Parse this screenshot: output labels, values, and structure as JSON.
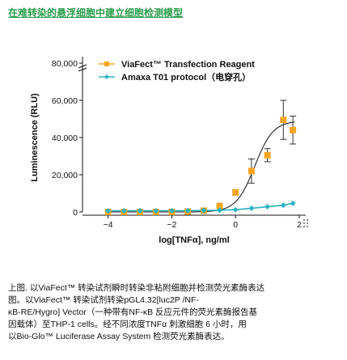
{
  "title": "在难转染的悬浮细胞中建立细胞检测模型",
  "caption": [
    "上图. 以ViaFect™ 转染试剂瞬时转染非粘附细胞并检测荧光素酶表达",
    "图。以ViaFect™ 转染试剂转染pGL4.32[luc2P /NF-",
    "κB-RE/Hygro] Vector（一种带有NF-κB 反应元件的荧光素酶报告基",
    "因载体）至THP-1 cells。经不同浓度TNFα 刺激细胞 6 小时，用",
    "以Bio-Glo™ Luciferase Assay System 检测荧光素酶表达。"
  ],
  "colors": {
    "viafect": "#f5a623",
    "amaxa": "#2bb3c0",
    "curve": "#222222",
    "title": "#2a9d4b"
  },
  "chart_data": {
    "type": "line",
    "title": "",
    "xlabel": "log[TNFα], ng/ml",
    "ylabel": "Luminescence (RLU)",
    "xlim": [
      -4.6,
      2
    ],
    "ylim": [
      0,
      80000
    ],
    "xticks": [
      -4,
      -2,
      0,
      2
    ],
    "yticks": [
      0,
      20000,
      40000,
      60000,
      80000
    ],
    "ytick_labels": [
      "0",
      "20,000",
      "40,000",
      "60,000",
      "80,000"
    ],
    "legend_position": "top",
    "series": [
      {
        "name": "ViaFect™ Transfection Reagent",
        "color": "#f5a623",
        "marker": "square",
        "x": [
          -4.0,
          -3.5,
          -3.0,
          -2.5,
          -2.0,
          -1.5,
          -1.0,
          -0.5,
          0.0,
          0.5,
          1.0,
          1.5,
          1.8
        ],
        "y": [
          0,
          0,
          0,
          0,
          0,
          200,
          700,
          3200,
          10500,
          22000,
          30500,
          49500,
          44000
        ],
        "err": [
          0,
          0,
          0,
          0,
          0,
          200,
          300,
          900,
          1500,
          6500,
          3500,
          10500,
          7500
        ],
        "fit_curve": {
          "bottom": 0,
          "top": 49000,
          "ec50_log": 0.6,
          "hill": 1.5
        }
      },
      {
        "name": "Amaxa T01 protocol（电穿孔）",
        "color": "#2bb3c0",
        "marker": "diamond",
        "x": [
          -4.0,
          -3.5,
          -3.0,
          -2.5,
          -2.0,
          -1.5,
          -1.0,
          -0.5,
          0.0,
          0.5,
          1.0,
          1.5,
          1.8
        ],
        "y": [
          600,
          600,
          700,
          600,
          700,
          700,
          800,
          900,
          1200,
          2000,
          2800,
          3600,
          4600
        ],
        "err": [
          0,
          0,
          0,
          0,
          0,
          0,
          0,
          0,
          0,
          0,
          0,
          0,
          0
        ]
      }
    ]
  }
}
